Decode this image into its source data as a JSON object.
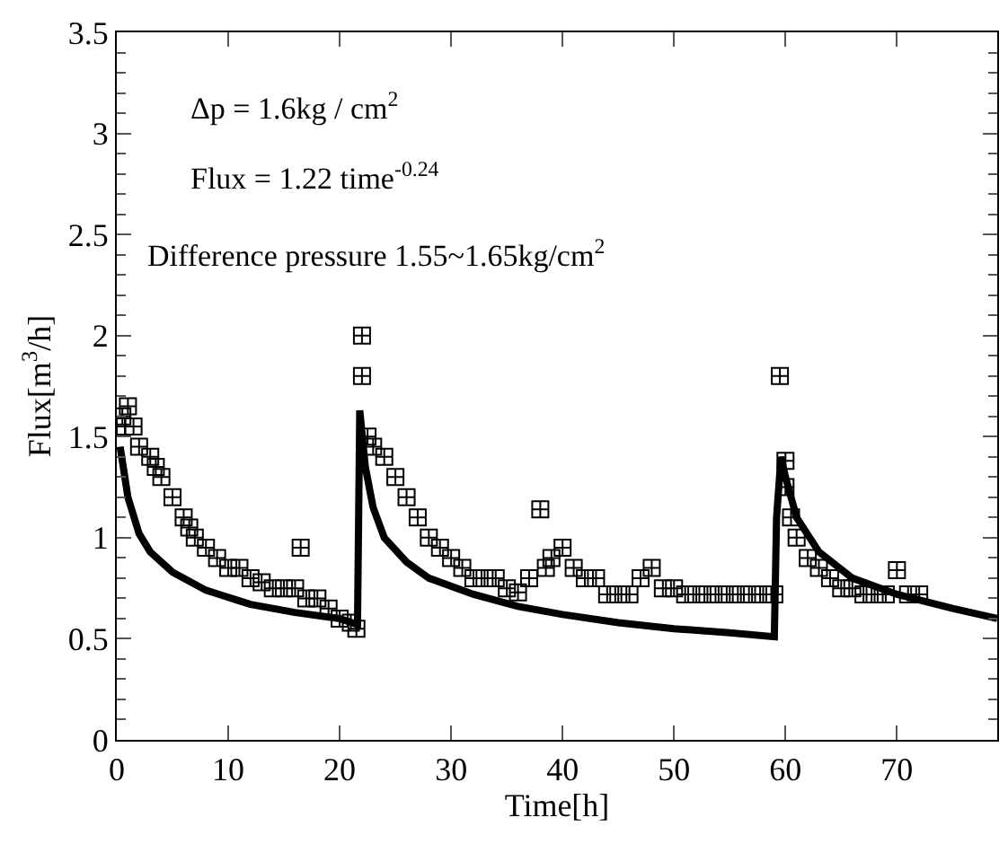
{
  "chart_data": {
    "type": "scatter",
    "xlabel": "Time[h]",
    "ylabel": "Flux[m$^{3}$/h]",
    "annotations": [
      "Δp = 1.6kg / cm$^{2}$",
      "Flux = 1.22 time$^{-0.24}$",
      "Difference pressure 1.55~1.65kg/cm$^{2}$"
    ],
    "xlim": [
      0,
      79
    ],
    "xticks": [
      0,
      10,
      20,
      30,
      40,
      50,
      60,
      70
    ],
    "ylim": [
      0,
      3.5
    ],
    "yticks": [
      0,
      0.5,
      1,
      1.5,
      2,
      2.5,
      3,
      3.5
    ],
    "series": [
      {
        "marker": "cross",
        "color": "#000000",
        "x": [
          0,
          0.5,
          1,
          1.5,
          2,
          3,
          3.5,
          4,
          5,
          6,
          6.5,
          7,
          8,
          9,
          10,
          11,
          12,
          13,
          14,
          15,
          16,
          16.5,
          17,
          18,
          19,
          20,
          21,
          21.5,
          22,
          22,
          22.5,
          23,
          24,
          25,
          26,
          27,
          28,
          29,
          30,
          31,
          32,
          33,
          34,
          35,
          36,
          37,
          38,
          38.5,
          39,
          40,
          41,
          42,
          43,
          44,
          45,
          46,
          47,
          48,
          49,
          50,
          51,
          52,
          53,
          54,
          55,
          56,
          57,
          58,
          59,
          59.5,
          60,
          60,
          60.5,
          61,
          62,
          63,
          64,
          65,
          66,
          67,
          68,
          69,
          70,
          71,
          72
        ],
        "values": [
          1.55,
          1.6,
          1.65,
          1.55,
          1.45,
          1.4,
          1.35,
          1.3,
          1.2,
          1.1,
          1.05,
          1.0,
          0.95,
          0.9,
          0.85,
          0.85,
          0.8,
          0.78,
          0.75,
          0.75,
          0.75,
          0.95,
          0.7,
          0.7,
          0.65,
          0.6,
          0.58,
          0.55,
          2.0,
          1.8,
          1.5,
          1.45,
          1.4,
          1.3,
          1.2,
          1.1,
          1.0,
          0.95,
          0.9,
          0.85,
          0.8,
          0.8,
          0.8,
          0.75,
          0.73,
          0.8,
          1.14,
          0.85,
          0.9,
          0.95,
          0.85,
          0.8,
          0.8,
          0.72,
          0.72,
          0.72,
          0.8,
          0.85,
          0.75,
          0.75,
          0.72,
          0.72,
          0.72,
          0.72,
          0.72,
          0.72,
          0.72,
          0.72,
          0.72,
          1.8,
          1.38,
          1.25,
          1.1,
          1.0,
          0.9,
          0.85,
          0.8,
          0.75,
          0.75,
          0.72,
          0.72,
          0.72,
          0.84,
          0.72,
          0.72
        ]
      },
      {
        "type": "line",
        "color": "#000000",
        "x": [
          0.3,
          1,
          2,
          3,
          5,
          8,
          12,
          16,
          20,
          21.6,
          21.8,
          22.3,
          23,
          24,
          26,
          28,
          32,
          36,
          40,
          45,
          50,
          55,
          59,
          59.2,
          59.6,
          60,
          61,
          63,
          66,
          70,
          75,
          79
        ],
        "values": [
          1.45,
          1.2,
          1.02,
          0.93,
          0.83,
          0.74,
          0.67,
          0.63,
          0.6,
          0.57,
          1.63,
          1.35,
          1.15,
          1.0,
          0.88,
          0.8,
          0.72,
          0.66,
          0.62,
          0.58,
          0.55,
          0.53,
          0.51,
          1.1,
          1.4,
          1.3,
          1.1,
          0.93,
          0.8,
          0.72,
          0.65,
          0.6
        ]
      }
    ]
  }
}
